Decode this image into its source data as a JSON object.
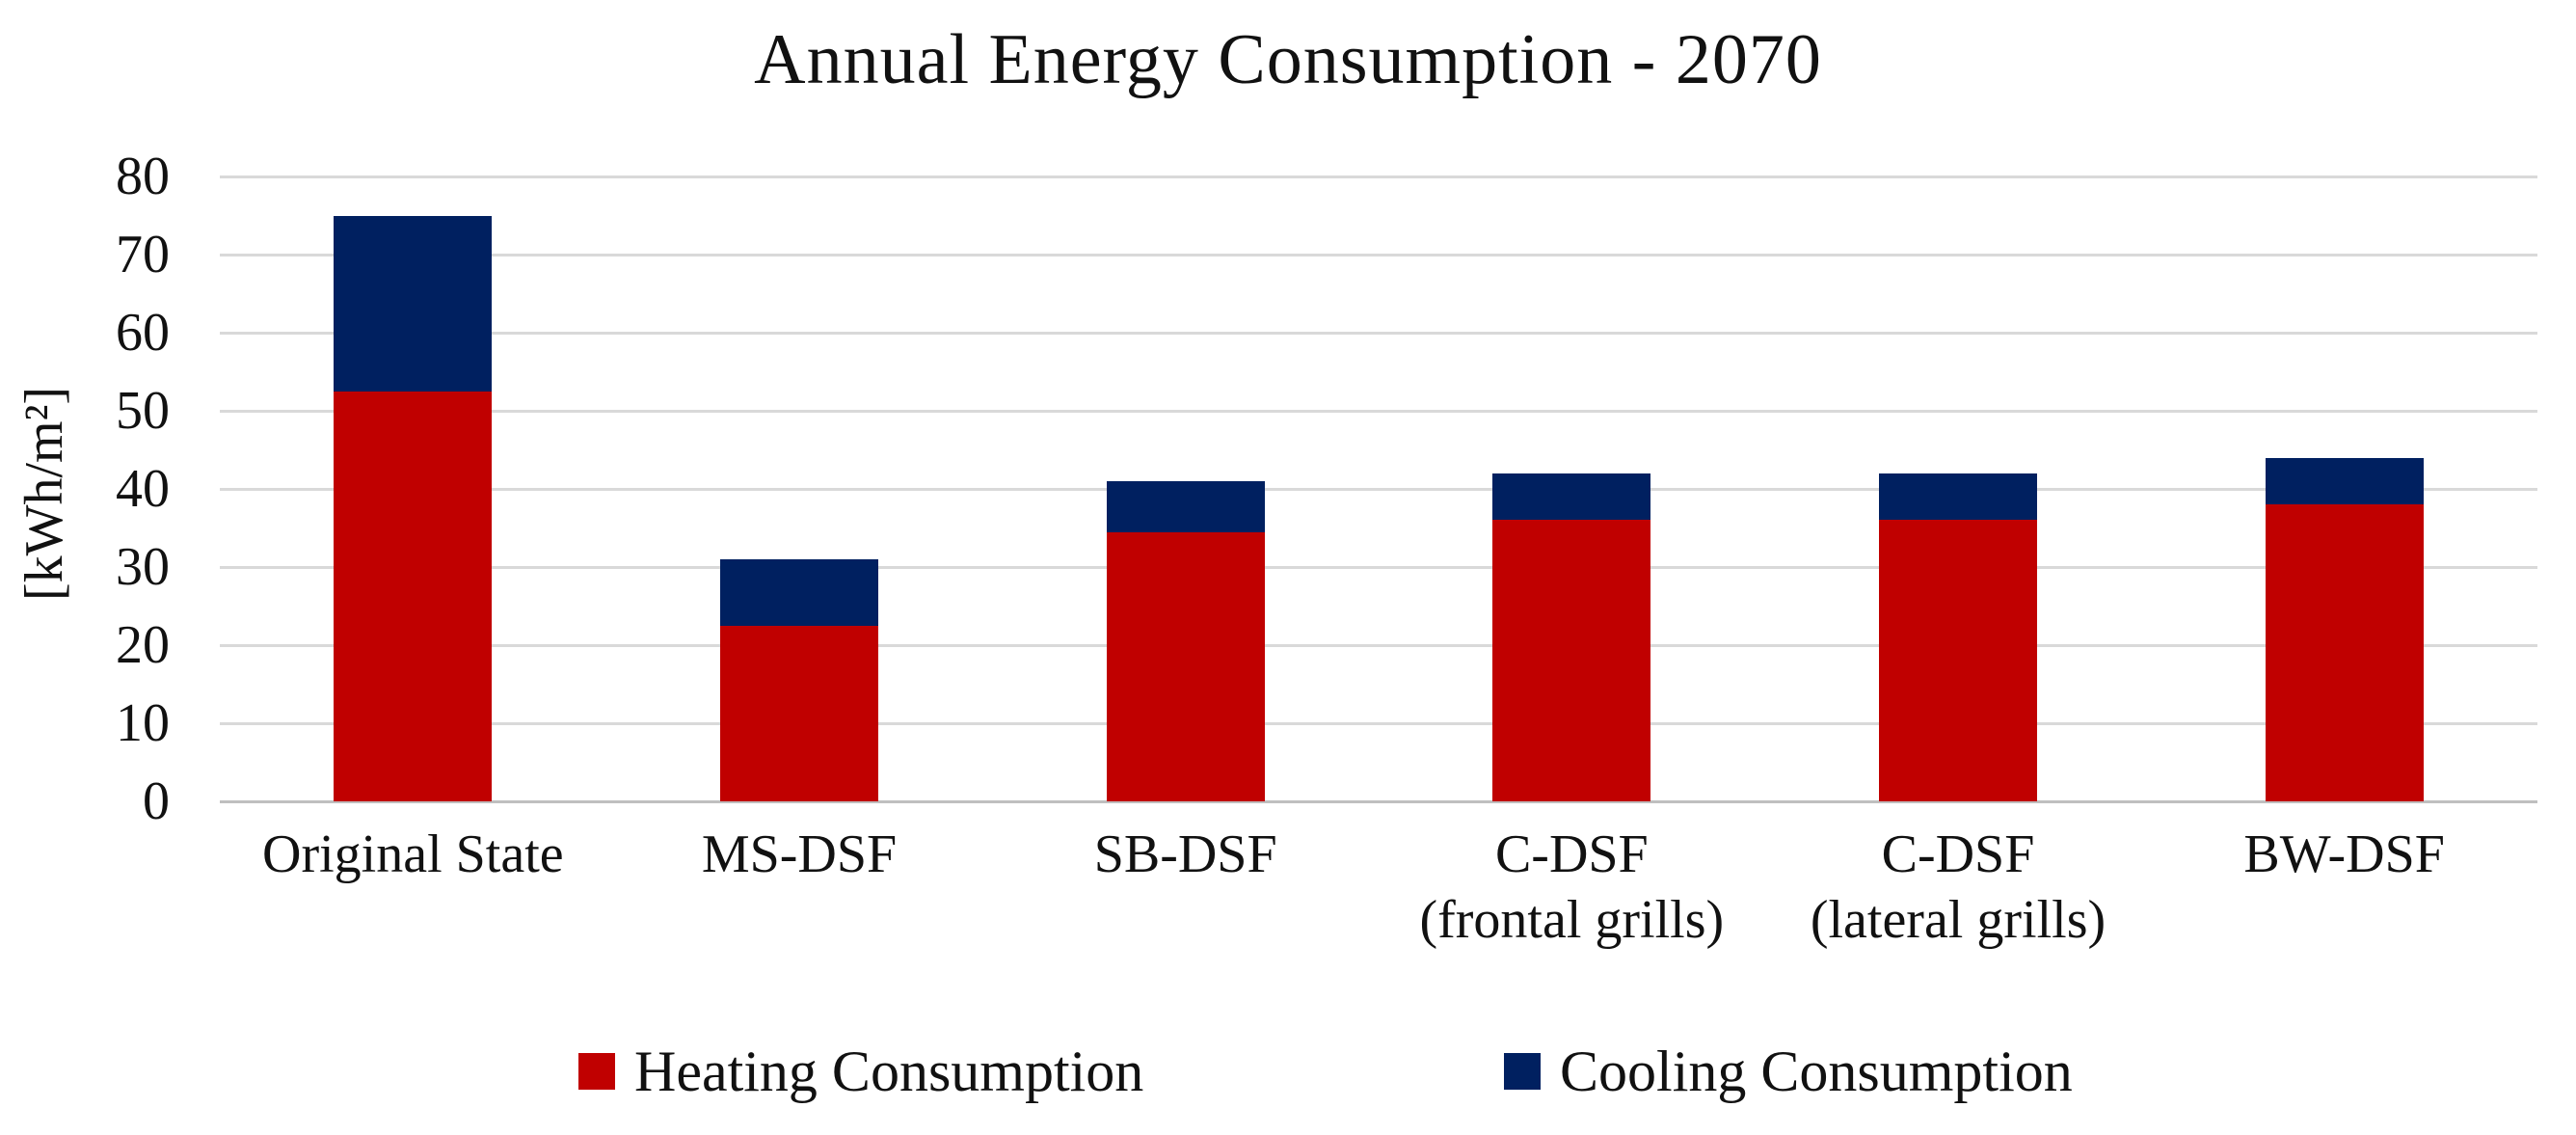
{
  "title": "Annual Energy Consumption - 2070",
  "chart_data": {
    "type": "bar",
    "stacked": true,
    "title": "Annual Energy Consumption - 2070",
    "xlabel": "",
    "ylabel": "[kWh/m²]",
    "ylim": [
      0,
      80
    ],
    "yticks": [
      0,
      10,
      20,
      30,
      40,
      50,
      60,
      70,
      80
    ],
    "grid": "horizontal",
    "legend_position": "bottom",
    "categories": [
      "Original State",
      "MS-DSF",
      "SB-DSF",
      "C-DSF\n(frontal grills)",
      "C-DSF\n(lateral grills)",
      "BW-DSF"
    ],
    "series": [
      {
        "name": "Heating Consumption",
        "color": "#C00000",
        "values": [
          52.5,
          22.5,
          34.5,
          36,
          36,
          38
        ]
      },
      {
        "name": "Cooling Consumption",
        "color": "#002060",
        "values": [
          22.5,
          8.5,
          6.5,
          6,
          6,
          6
        ]
      }
    ],
    "stack_totals": [
      75,
      31,
      41,
      42,
      42,
      44
    ]
  },
  "colors": {
    "heating": "#C00000",
    "cooling": "#002060",
    "gridline": "#D9D9D9",
    "axis_line": "#BFBFBF",
    "text": "#111111",
    "background": "#FFFFFF"
  }
}
